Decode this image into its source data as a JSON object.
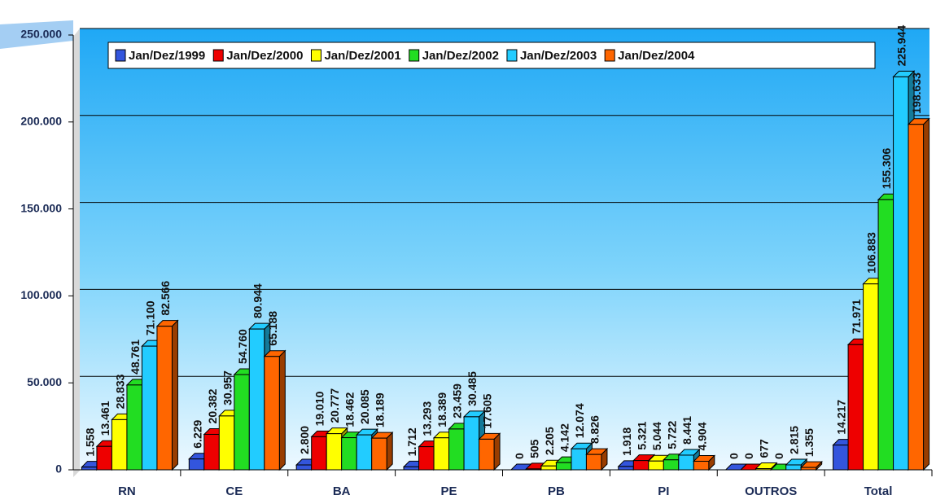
{
  "chart_data": {
    "type": "bar",
    "categories": [
      "RN",
      "CE",
      "BA",
      "PE",
      "PB",
      "PI",
      "OUTROS",
      "Total"
    ],
    "series": [
      {
        "name": "Jan/Dez/1999",
        "color": "#3355dd",
        "values": [
          1558,
          6229,
          2800,
          1712,
          0,
          1918,
          0,
          14217
        ],
        "value_labels": [
          "1.558",
          "6.229",
          "2.800",
          "1.712",
          "0",
          "1.918",
          "0",
          "14.217"
        ]
      },
      {
        "name": "Jan/Dez/2000",
        "color": "#ee0000",
        "values": [
          13461,
          20382,
          19010,
          13293,
          505,
          5321,
          0,
          71971
        ],
        "value_labels": [
          "13.461",
          "20.382",
          "19.010",
          "13.293",
          "505",
          "5.321",
          "0",
          "71.971"
        ]
      },
      {
        "name": "Jan/Dez/2001",
        "color": "#ffff00",
        "values": [
          28833,
          30957,
          20777,
          18389,
          2205,
          5044,
          677,
          106883
        ],
        "value_labels": [
          "28.833",
          "30.957",
          "20.777",
          "18.389",
          "2.205",
          "5.044",
          "677",
          "106.883"
        ]
      },
      {
        "name": "Jan/Dez/2002",
        "color": "#22dd22",
        "values": [
          48761,
          54760,
          18462,
          23459,
          4142,
          5722,
          0,
          155306
        ],
        "value_labels": [
          "48.761",
          "54.760",
          "18.462",
          "23.459",
          "4.142",
          "5.722",
          "0",
          "155.306"
        ]
      },
      {
        "name": "Jan/Dez/2003",
        "color": "#22ccff",
        "values": [
          71100,
          80944,
          20085,
          30485,
          12074,
          8441,
          2815,
          225944
        ],
        "value_labels": [
          "71.100",
          "80.944",
          "20.085",
          "30.485",
          "12.074",
          "8.441",
          "2.815",
          "225.944"
        ]
      },
      {
        "name": "Jan/Dez/2004",
        "color": "#ff6600",
        "values": [
          82566,
          65188,
          18189,
          17605,
          8826,
          4904,
          1355,
          198633
        ],
        "value_labels": [
          "82.566",
          "65.188",
          "18.189",
          "17.605",
          "8.826",
          "4.904",
          "1.355",
          "198.633"
        ]
      }
    ],
    "ylim": [
      0,
      250000
    ],
    "yticks": [
      0,
      {
        "value": 50000,
        "label": "50.000"
      },
      {
        "value": 100000,
        "label": "100.000"
      },
      {
        "value": 150000,
        "label": "150.000"
      },
      {
        "value": 200000,
        "label": "200.000"
      },
      {
        "value": 250000,
        "label": "250.000"
      }
    ],
    "grid": true,
    "legend": "top"
  }
}
